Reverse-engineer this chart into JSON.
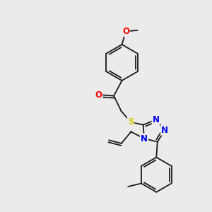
{
  "bg": "#ebebeb",
  "bond_color": "#1a1a1a",
  "atom_colors": {
    "O": "#ff0000",
    "N": "#0000ee",
    "S": "#cccc00",
    "C": "#1a1a1a"
  },
  "font_size": 8.5
}
